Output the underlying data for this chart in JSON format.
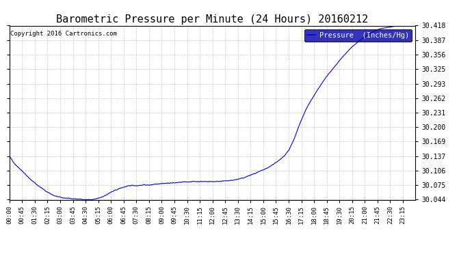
{
  "title": "Barometric Pressure per Minute (24 Hours) 20160212",
  "copyright_text": "Copyright 2016 Cartronics.com",
  "legend_label": "Pressure  (Inches/Hg)",
  "line_color": "#0000CC",
  "background_color": "#ffffff",
  "grid_color": "#bbbbbb",
  "ylim": [
    30.044,
    30.418
  ],
  "yticks": [
    30.044,
    30.075,
    30.106,
    30.137,
    30.169,
    30.2,
    30.231,
    30.262,
    30.293,
    30.325,
    30.356,
    30.387,
    30.418
  ],
  "total_minutes": 1440,
  "xtick_interval": 45,
  "title_fontsize": 11,
  "legend_bg": "#0000AA",
  "legend_fg": "#ffffff",
  "control_points": [
    [
      0,
      30.137
    ],
    [
      20,
      30.12
    ],
    [
      45,
      30.106
    ],
    [
      70,
      30.09
    ],
    [
      100,
      30.075
    ],
    [
      130,
      30.062
    ],
    [
      160,
      30.052
    ],
    [
      190,
      30.048
    ],
    [
      220,
      30.046
    ],
    [
      250,
      30.045
    ],
    [
      265,
      30.044
    ],
    [
      280,
      30.044
    ],
    [
      295,
      30.044
    ],
    [
      310,
      30.046
    ],
    [
      320,
      30.048
    ],
    [
      330,
      30.05
    ],
    [
      345,
      30.055
    ],
    [
      360,
      30.06
    ],
    [
      375,
      30.064
    ],
    [
      390,
      30.068
    ],
    [
      405,
      30.071
    ],
    [
      420,
      30.073
    ],
    [
      435,
      30.075
    ],
    [
      450,
      30.074
    ],
    [
      465,
      30.075
    ],
    [
      480,
      30.076
    ],
    [
      495,
      30.075
    ],
    [
      510,
      30.077
    ],
    [
      525,
      30.078
    ],
    [
      540,
      30.079
    ],
    [
      555,
      30.079
    ],
    [
      570,
      30.08
    ],
    [
      585,
      30.08
    ],
    [
      600,
      30.081
    ],
    [
      615,
      30.082
    ],
    [
      630,
      30.082
    ],
    [
      645,
      30.083
    ],
    [
      660,
      30.083
    ],
    [
      675,
      30.083
    ],
    [
      690,
      30.083
    ],
    [
      705,
      30.083
    ],
    [
      720,
      30.083
    ],
    [
      735,
      30.083
    ],
    [
      750,
      30.084
    ],
    [
      765,
      30.084
    ],
    [
      780,
      30.085
    ],
    [
      795,
      30.086
    ],
    [
      810,
      30.088
    ],
    [
      825,
      30.09
    ],
    [
      840,
      30.093
    ],
    [
      855,
      30.097
    ],
    [
      870,
      30.1
    ],
    [
      885,
      30.104
    ],
    [
      900,
      30.108
    ],
    [
      915,
      30.112
    ],
    [
      930,
      30.118
    ],
    [
      945,
      30.124
    ],
    [
      960,
      30.13
    ],
    [
      975,
      30.139
    ],
    [
      990,
      30.15
    ],
    [
      1000,
      30.162
    ],
    [
      1010,
      30.175
    ],
    [
      1020,
      30.192
    ],
    [
      1030,
      30.208
    ],
    [
      1040,
      30.222
    ],
    [
      1050,
      30.236
    ],
    [
      1060,
      30.248
    ],
    [
      1070,
      30.258
    ],
    [
      1080,
      30.268
    ],
    [
      1090,
      30.278
    ],
    [
      1100,
      30.287
    ],
    [
      1110,
      30.296
    ],
    [
      1120,
      30.305
    ],
    [
      1130,
      30.313
    ],
    [
      1140,
      30.32
    ],
    [
      1150,
      30.328
    ],
    [
      1160,
      30.335
    ],
    [
      1170,
      30.343
    ],
    [
      1180,
      30.35
    ],
    [
      1190,
      30.357
    ],
    [
      1200,
      30.363
    ],
    [
      1210,
      30.37
    ],
    [
      1220,
      30.375
    ],
    [
      1230,
      30.38
    ],
    [
      1240,
      30.385
    ],
    [
      1250,
      30.39
    ],
    [
      1260,
      30.394
    ],
    [
      1270,
      30.398
    ],
    [
      1280,
      30.402
    ],
    [
      1290,
      30.405
    ],
    [
      1300,
      30.408
    ],
    [
      1310,
      30.41
    ],
    [
      1320,
      30.412
    ],
    [
      1330,
      30.413
    ],
    [
      1340,
      30.414
    ],
    [
      1350,
      30.415
    ],
    [
      1360,
      30.416
    ],
    [
      1370,
      30.417
    ],
    [
      1380,
      30.417
    ],
    [
      1390,
      30.418
    ],
    [
      1400,
      30.418
    ],
    [
      1410,
      30.418
    ],
    [
      1420,
      30.418
    ],
    [
      1430,
      30.418
    ],
    [
      1439,
      30.418
    ]
  ]
}
